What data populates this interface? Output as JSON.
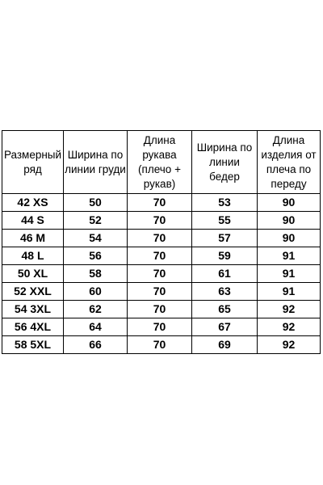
{
  "table": {
    "headers": [
      "Размерный\nряд",
      "Ширина по\nлинии груди",
      "Длина\nрукава\n(плечо +\nрукав)",
      "Ширина по\nлинии\nбедер",
      "Длина\nизделия от\nплеча по\nпереду"
    ],
    "rows": [
      [
        "42 XS",
        "50",
        "70",
        "53",
        "90"
      ],
      [
        "44 S",
        "52",
        "70",
        "55",
        "90"
      ],
      [
        "46 M",
        "54",
        "70",
        "57",
        "90"
      ],
      [
        "48 L",
        "56",
        "70",
        "59",
        "91"
      ],
      [
        "50 XL",
        "58",
        "70",
        "61",
        "91"
      ],
      [
        "52 XXL",
        "60",
        "70",
        "63",
        "91"
      ],
      [
        "54 3XL",
        "62",
        "70",
        "65",
        "92"
      ],
      [
        "56 4XL",
        "64",
        "70",
        "67",
        "92"
      ],
      [
        "58 5XL",
        "66",
        "70",
        "69",
        "92"
      ]
    ]
  }
}
